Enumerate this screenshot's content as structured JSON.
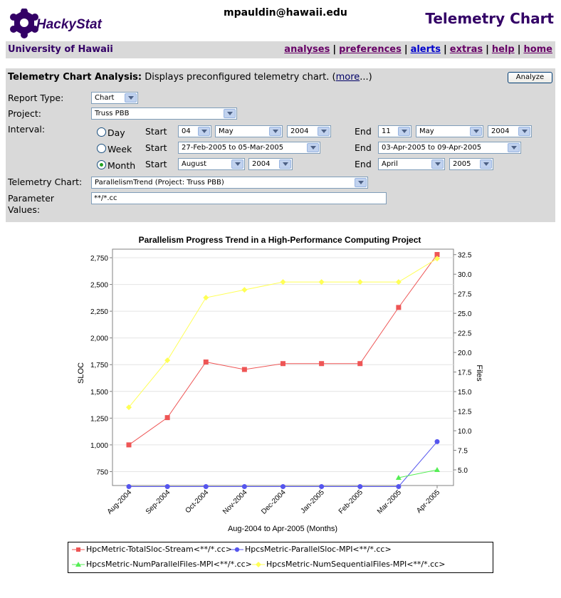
{
  "header": {
    "logo_text": "HackyStat",
    "user_email": "mpauldin@hawaii.edu",
    "page_title": "Telemetry Chart"
  },
  "nav": {
    "org_name": "University of Hawaii",
    "links": [
      "analyses",
      "preferences",
      "alerts",
      "extras",
      "help",
      "home"
    ]
  },
  "form": {
    "heading_bold": "Telemetry Chart Analysis:",
    "heading_text": " Displays preconfigured telemetry chart. (",
    "more_link": "more",
    "heading_tail": "...)",
    "analyze_label": "Analyze",
    "report_type_label": "Report Type:",
    "report_type_value": "Chart",
    "project_label": "Project:",
    "project_value": "Truss PBB",
    "interval_label": "Interval:",
    "day_label": "Day",
    "week_label": "Week",
    "month_label": "Month",
    "selected_interval": "Month",
    "start_label": "Start",
    "end_label": "End",
    "day_start": [
      "04",
      "May",
      "2004"
    ],
    "day_end": [
      "11",
      "May",
      "2004"
    ],
    "week_start": "27-Feb-2005 to 05-Mar-2005",
    "week_end": "03-Apr-2005 to 09-Apr-2005",
    "month_start": [
      "August",
      "2004"
    ],
    "month_end": [
      "April",
      "2005"
    ],
    "telemetry_chart_label": "Telemetry Chart:",
    "telemetry_chart_value": "ParallelismTrend (Project: Truss PBB)",
    "parameter_label_1": "Parameter",
    "parameter_label_2": "Values:",
    "parameter_value": "**/*.cc"
  },
  "chart_data": {
    "type": "line",
    "title": "Parallelism Progress Trend in a High-Performance Computing Project",
    "xlabel": "Aug-2004 to Apr-2005 (Months)",
    "ylabel": "SLOC",
    "y2label": "Files",
    "categories": [
      "Aug-2004",
      "Sep-2004",
      "Oct-2004",
      "Nov-2004",
      "Dec-2004",
      "Jan-2005",
      "Feb-2005",
      "Mar-2005",
      "Apr-2005"
    ],
    "ylim": [
      620,
      2830
    ],
    "y2lim": [
      3.0,
      33.2
    ],
    "yticks": [
      "750",
      "1,000",
      "1,250",
      "1,500",
      "1,750",
      "2,000",
      "2,250",
      "2,500",
      "2,750"
    ],
    "y2ticks": [
      "5.0",
      "7.5",
      "10.0",
      "12.5",
      "15.0",
      "17.5",
      "20.0",
      "22.5",
      "25.0",
      "27.5",
      "30.0",
      "32.5"
    ],
    "grid": true,
    "legend_position": "bottom",
    "series": [
      {
        "name": "HpcMetric-TotalSloc-Stream<**/*.cc>",
        "axis": "left",
        "color": "#ee5555",
        "marker": "square",
        "values": [
          1000,
          1255,
          1775,
          1705,
          1760,
          1760,
          1760,
          2285,
          2780
        ]
      },
      {
        "name": "HpcsMetric-ParallelSloc-MPI<**/*.cc>",
        "axis": "left",
        "color": "#5555ee",
        "marker": "circle",
        "values": [
          610,
          610,
          610,
          610,
          610,
          610,
          610,
          610,
          1030
        ]
      },
      {
        "name": "HpcsMetric-NumParallelFiles-MPI<**/*.cc>",
        "axis": "right",
        "color": "#55ee55",
        "marker": "triangle",
        "values": [
          null,
          null,
          null,
          null,
          null,
          null,
          null,
          4.0,
          5.0
        ]
      },
      {
        "name": "HpcsMetric-NumSequentialFiles-MPI<**/*.cc>",
        "axis": "right",
        "color": "#ffff55",
        "marker": "diamond",
        "values": [
          13.0,
          19.0,
          27.0,
          28.0,
          29.0,
          29.0,
          29.0,
          29.0,
          32.0
        ]
      }
    ]
  }
}
